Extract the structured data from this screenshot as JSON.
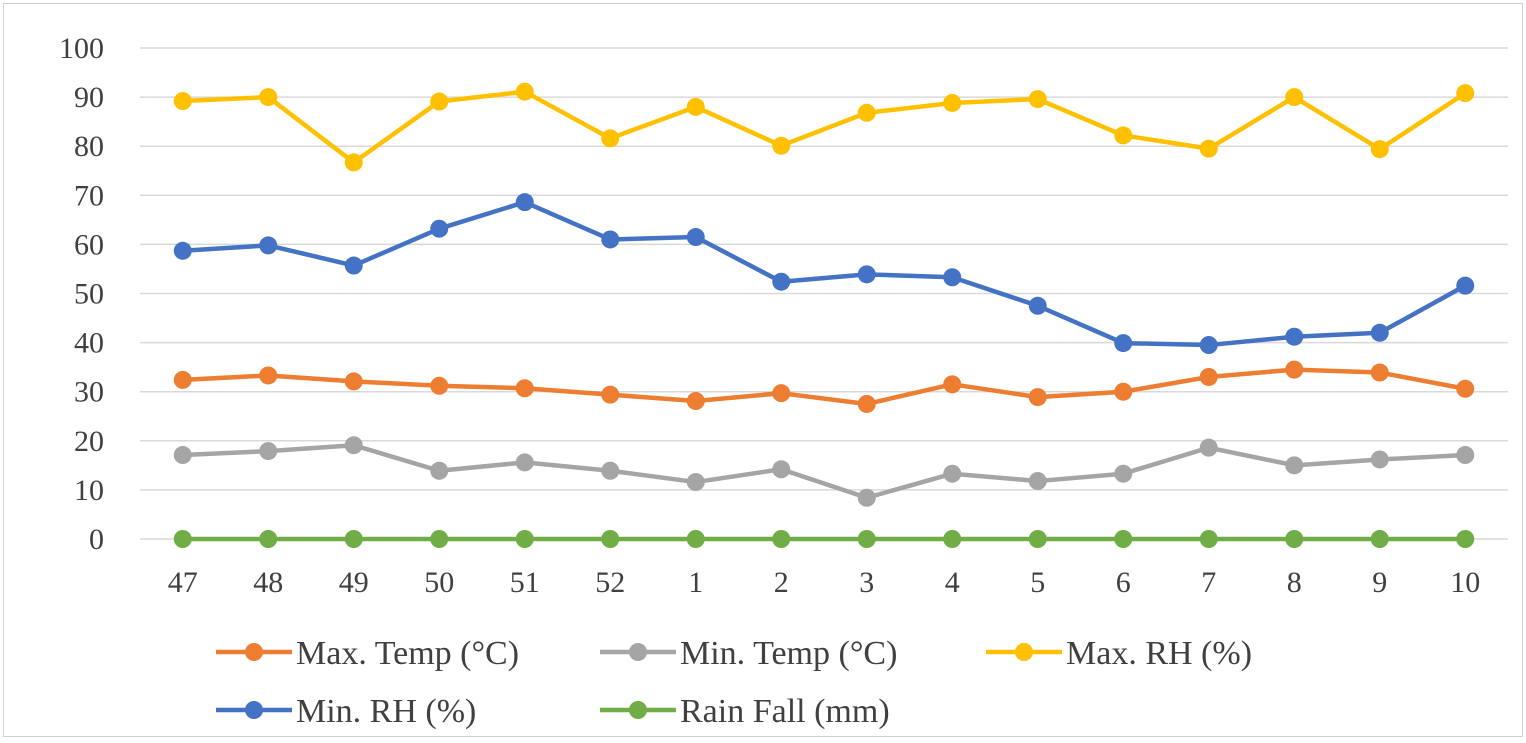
{
  "chart_data": {
    "type": "line",
    "title": "",
    "xlabel": "",
    "ylabel": "",
    "categories": [
      "47",
      "48",
      "49",
      "50",
      "51",
      "52",
      "1",
      "2",
      "3",
      "4",
      "5",
      "6",
      "7",
      "8",
      "9",
      "10"
    ],
    "ylim": [
      0,
      100
    ],
    "yticks": [
      0,
      10,
      20,
      30,
      40,
      50,
      60,
      70,
      80,
      90,
      100
    ],
    "grid": true,
    "legend_position": "bottom",
    "series": [
      {
        "name": "Max. Temp (°C)",
        "color": "#ED7D31",
        "values": [
          32.4,
          33.3,
          32.1,
          31.2,
          30.7,
          29.4,
          28.1,
          29.7,
          27.5,
          31.5,
          28.9,
          30.0,
          33.0,
          34.5,
          33.9,
          30.6
        ]
      },
      {
        "name": "Min. Temp (°C)",
        "color": "#A5A5A5",
        "values": [
          17.1,
          17.9,
          19.1,
          13.9,
          15.6,
          13.9,
          11.6,
          14.2,
          8.4,
          13.3,
          11.8,
          13.3,
          18.6,
          15.0,
          16.2,
          17.1
        ]
      },
      {
        "name": "Max. RH (%)",
        "color": "#FFC000",
        "values": [
          89.2,
          90.0,
          76.7,
          89.1,
          91.1,
          81.6,
          88.0,
          80.1,
          86.8,
          88.8,
          89.6,
          82.2,
          79.5,
          90.0,
          79.4,
          90.8
        ]
      },
      {
        "name": "Min. RH (%)",
        "color": "#4472C4",
        "values": [
          58.7,
          59.8,
          55.7,
          63.2,
          68.6,
          61.0,
          61.5,
          52.4,
          53.9,
          53.3,
          47.5,
          39.9,
          39.5,
          41.2,
          42.0,
          51.6
        ]
      },
      {
        "name": "Rain Fall (mm)",
        "color": "#70AD47",
        "values": [
          0,
          0,
          0,
          0,
          0,
          0,
          0,
          0,
          0,
          0,
          0,
          0,
          0,
          0,
          0,
          0
        ]
      }
    ]
  }
}
